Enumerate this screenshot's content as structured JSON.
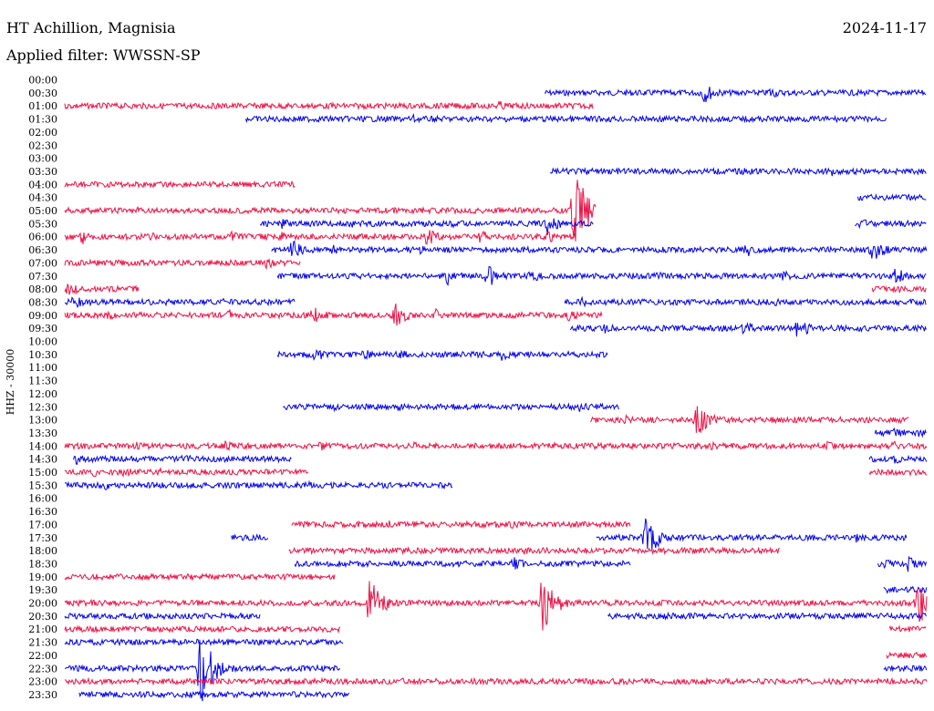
{
  "header": {
    "station": "HT Achillion, Magnisia",
    "date": "2024-11-17",
    "filter": "Applied filter: WWSSN-SP"
  },
  "colors": {
    "odd_rows": "#0000ee",
    "even_rows": "#ee1144"
  },
  "chart_data": {
    "type": "line",
    "title": "HT Achillion, Magnisia",
    "subtitle": "Applied filter: WWSSN-SP",
    "ylabel": "HHZ - 30000",
    "xlabel": "",
    "x_range_minutes": [
      0,
      30
    ],
    "row_labels": [
      "00:00",
      "00:30",
      "01:00",
      "01:30",
      "02:00",
      "02:30",
      "03:00",
      "03:30",
      "04:00",
      "04:30",
      "05:00",
      "05:30",
      "06:00",
      "06:30",
      "07:00",
      "07:30",
      "08:00",
      "08:30",
      "09:00",
      "09:30",
      "10:00",
      "10:30",
      "11:00",
      "11:30",
      "12:00",
      "12:30",
      "13:00",
      "13:30",
      "14:00",
      "14:30",
      "15:00",
      "15:30",
      "16:00",
      "16:30",
      "17:00",
      "17:30",
      "18:00",
      "18:30",
      "19:00",
      "19:30",
      "20:00",
      "20:30",
      "21:00",
      "21:30",
      "22:00",
      "22:30",
      "23:00",
      "23:30"
    ],
    "series": [
      {
        "row": "00:30",
        "segments": [
          [
            16.7,
            30
          ]
        ],
        "events": [
          [
            22.2,
            1.5
          ],
          [
            24.5,
            0.9
          ],
          [
            27.5,
            0.3
          ]
        ]
      },
      {
        "row": "01:00",
        "segments": [
          [
            0,
            18.4
          ]
        ],
        "events": [
          [
            15.1,
            0.7
          ],
          [
            13.1,
            0.2
          ]
        ]
      },
      {
        "row": "01:30",
        "segments": [
          [
            6.3,
            28.6
          ]
        ],
        "events": [
          [
            12.1,
            0.6
          ],
          [
            14.6,
            0.4
          ],
          [
            17.0,
            0.3
          ]
        ]
      },
      {
        "row": "03:30",
        "segments": [
          [
            16.9,
            30
          ]
        ],
        "events": [
          [
            23.6,
            0.5
          ],
          [
            26.7,
            0.6
          ],
          [
            21.0,
            0.3
          ],
          [
            19.9,
            0.2
          ]
        ]
      },
      {
        "row": "04:00",
        "segments": [
          [
            0,
            8.0
          ]
        ],
        "events": [
          [
            6.6,
            0.2
          ]
        ]
      },
      {
        "row": "04:30",
        "segments": [
          [
            27.6,
            30
          ]
        ],
        "events": [
          [
            29.0,
            0.2
          ]
        ]
      },
      {
        "row": "05:00",
        "segments": [
          [
            0,
            18.5
          ]
        ],
        "events": [
          [
            2.5,
            0.5
          ],
          [
            5.0,
            0.5
          ],
          [
            10.0,
            0.4
          ],
          [
            14.0,
            0.4
          ],
          [
            17.7,
            6.3
          ]
        ]
      },
      {
        "row": "05:30",
        "segments": [
          [
            6.8,
            18.4
          ],
          [
            27.5,
            30
          ]
        ],
        "events": [
          [
            7.5,
            0.8
          ],
          [
            10.0,
            0.6
          ],
          [
            13.5,
            0.5
          ],
          [
            16.8,
            1.4
          ],
          [
            27.7,
            0.8
          ]
        ]
      },
      {
        "row": "06:00",
        "segments": [
          [
            0,
            17.8
          ]
        ],
        "events": [
          [
            0.6,
            1.0
          ],
          [
            3.0,
            0.6
          ],
          [
            5.8,
            0.7
          ],
          [
            7.5,
            0.7
          ],
          [
            12.6,
            1.2
          ],
          [
            14.4,
            1.0
          ],
          [
            16.8,
            0.9
          ]
        ]
      },
      {
        "row": "06:30",
        "segments": [
          [
            7.2,
            30
          ]
        ],
        "events": [
          [
            7.9,
            1.3
          ],
          [
            9.3,
            0.7
          ],
          [
            12.4,
            0.8
          ],
          [
            23.7,
            1.0
          ],
          [
            28.1,
            1.5
          ]
        ]
      },
      {
        "row": "07:00",
        "segments": [
          [
            0,
            8.2
          ]
        ],
        "events": [
          [
            7.0,
            0.8
          ]
        ]
      },
      {
        "row": "07:30",
        "segments": [
          [
            7.4,
            30
          ]
        ],
        "events": [
          [
            13.3,
            1.2
          ],
          [
            14.7,
            1.8
          ],
          [
            16.2,
            0.9
          ],
          [
            20.5,
            0.8
          ],
          [
            24.9,
            1.0
          ],
          [
            28.9,
            1.2
          ]
        ]
      },
      {
        "row": "08:00",
        "segments": [
          [
            0,
            2.6
          ],
          [
            28.1,
            30
          ]
        ],
        "events": [
          [
            0.1,
            1.0
          ],
          [
            29.0,
            0.6
          ]
        ]
      },
      {
        "row": "08:30",
        "segments": [
          [
            0,
            8.0
          ],
          [
            17.4,
            30
          ]
        ],
        "events": [
          [
            0.3,
            1.0
          ],
          [
            3.4,
            0.6
          ],
          [
            5.5,
            0.5
          ],
          [
            18.0,
            0.6
          ],
          [
            24.7,
            0.5
          ]
        ]
      },
      {
        "row": "09:00",
        "segments": [
          [
            0,
            18.7
          ]
        ],
        "events": [
          [
            1.5,
            0.7
          ],
          [
            5.7,
            0.8
          ],
          [
            8.6,
            1.4
          ],
          [
            11.5,
            1.7
          ],
          [
            12.9,
            0.9
          ],
          [
            17.5,
            0.8
          ]
        ]
      },
      {
        "row": "09:30",
        "segments": [
          [
            17.6,
            30
          ]
        ],
        "events": [
          [
            18.8,
            0.7
          ],
          [
            23.6,
            1.1
          ],
          [
            25.5,
            1.5
          ]
        ]
      },
      {
        "row": "10:30",
        "segments": [
          [
            7.4,
            18.9
          ]
        ],
        "events": [
          [
            8.7,
            1.0
          ],
          [
            10.4,
            0.8
          ],
          [
            11.7,
            0.6
          ],
          [
            15.2,
            0.8
          ]
        ]
      },
      {
        "row": "12:30",
        "segments": [
          [
            7.6,
            19.3
          ]
        ],
        "events": [
          [
            9.2,
            0.7
          ],
          [
            11.6,
            0.6
          ],
          [
            17.9,
            0.7
          ]
        ]
      },
      {
        "row": "13:00",
        "segments": [
          [
            18.3,
            29.4
          ]
        ],
        "events": [
          [
            19.5,
            0.6
          ],
          [
            22.0,
            2.2
          ],
          [
            29.1,
            0.4
          ]
        ]
      },
      {
        "row": "13:30",
        "segments": [
          [
            28.2,
            30
          ]
        ],
        "events": [
          [
            28.9,
            0.8
          ],
          [
            29.7,
            0.6
          ]
        ]
      },
      {
        "row": "14:00",
        "segments": [
          [
            0,
            30
          ]
        ],
        "events": [
          [
            2.5,
            0.5
          ],
          [
            5.5,
            0.8
          ],
          [
            8.8,
            0.8
          ],
          [
            12.1,
            0.6
          ],
          [
            17.0,
            0.5
          ],
          [
            22.5,
            0.6
          ],
          [
            26.5,
            0.6
          ],
          [
            28.8,
            0.8
          ]
        ]
      },
      {
        "row": "14:30",
        "segments": [
          [
            0.3,
            7.9
          ],
          [
            28.0,
            30
          ]
        ],
        "events": [
          [
            0.4,
            0.7
          ],
          [
            4.1,
            0.8
          ],
          [
            28.9,
            0.7
          ]
        ]
      },
      {
        "row": "15:00",
        "segments": [
          [
            0,
            8.5
          ],
          [
            28.0,
            30
          ]
        ],
        "events": [
          [
            1.0,
            0.6
          ],
          [
            2.0,
            0.8
          ],
          [
            3.3,
            0.6
          ],
          [
            5.2,
            0.4
          ]
        ]
      },
      {
        "row": "15:30",
        "segments": [
          [
            0,
            13.5
          ]
        ],
        "events": [
          [
            1.4,
            0.6
          ],
          [
            4.7,
            0.4
          ],
          [
            8.5,
            0.6
          ]
        ]
      },
      {
        "row": "17:00",
        "segments": [
          [
            7.9,
            19.7
          ]
        ],
        "events": [
          [
            8.9,
            0.5
          ],
          [
            11.3,
            0.5
          ],
          [
            13.2,
            0.4
          ],
          [
            14.9,
            0.5
          ],
          [
            15.5,
            0.6
          ],
          [
            18.1,
            0.5
          ]
        ]
      },
      {
        "row": "17:30",
        "segments": [
          [
            5.8,
            7.1
          ],
          [
            18.5,
            29.3
          ]
        ],
        "events": [
          [
            20.2,
            2.9
          ],
          [
            27.5,
            0.7
          ]
        ]
      },
      {
        "row": "18:00",
        "segments": [
          [
            7.8,
            24.9
          ]
        ],
        "events": [
          [
            10.7,
            0.4
          ],
          [
            15.9,
            0.7
          ]
        ]
      },
      {
        "row": "18:30",
        "segments": [
          [
            8.0,
            19.7
          ],
          [
            28.3,
            30
          ]
        ],
        "events": [
          [
            15.6,
            1.0
          ],
          [
            29.3,
            1.1
          ],
          [
            28.5,
            0.7
          ]
        ]
      },
      {
        "row": "19:00",
        "segments": [
          [
            0,
            9.4
          ]
        ],
        "events": [
          [
            3.3,
            0.4
          ],
          [
            8.6,
            0.4
          ]
        ]
      },
      {
        "row": "19:30",
        "segments": [
          [
            28.5,
            30
          ]
        ],
        "events": [
          [
            29.4,
            0.5
          ]
        ]
      },
      {
        "row": "20:00",
        "segments": [
          [
            0,
            30
          ]
        ],
        "events": [
          [
            2.9,
            0.6
          ],
          [
            10.6,
            3.7
          ],
          [
            16.6,
            3.8
          ],
          [
            20.8,
            0.5
          ],
          [
            29.7,
            3.2
          ]
        ]
      },
      {
        "row": "20:30",
        "segments": [
          [
            0,
            6.8
          ],
          [
            18.9,
            30
          ]
        ],
        "events": [
          [
            22.7,
            0.3
          ],
          [
            28.3,
            0.3
          ]
        ]
      },
      {
        "row": "21:00",
        "segments": [
          [
            0,
            9.6
          ],
          [
            28.7,
            30
          ]
        ],
        "events": [
          [
            29.4,
            0.4
          ]
        ]
      },
      {
        "row": "21:30",
        "segments": [
          [
            0,
            9.7
          ]
        ],
        "events": []
      },
      {
        "row": "22:00",
        "segments": [
          [
            28.6,
            30
          ]
        ],
        "events": []
      },
      {
        "row": "22:30",
        "segments": [
          [
            0,
            9.6
          ],
          [
            28.5,
            30
          ]
        ],
        "events": [
          [
            4.7,
            5.0
          ],
          [
            29.1,
            0.4
          ]
        ]
      },
      {
        "row": "23:00",
        "segments": [
          [
            0,
            30
          ]
        ],
        "events": [
          [
            11.6,
            0.6
          ],
          [
            22.3,
            0.3
          ],
          [
            28.6,
            0.5
          ]
        ]
      },
      {
        "row": "23:30",
        "segments": [
          [
            0.5,
            9.9
          ]
        ],
        "events": [
          [
            2.1,
            0.3
          ]
        ]
      }
    ]
  }
}
